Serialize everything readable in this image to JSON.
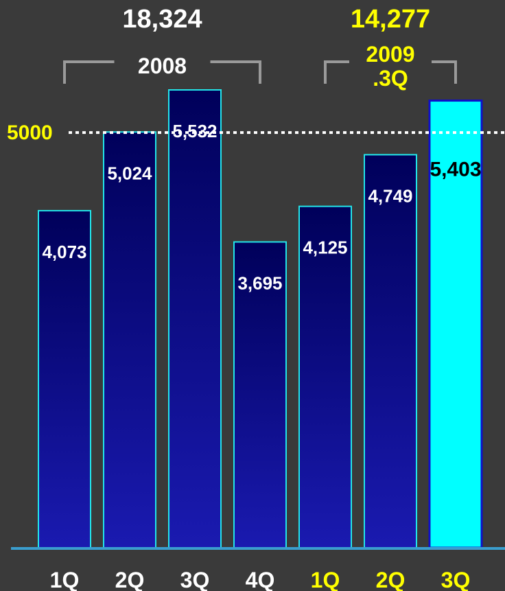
{
  "chart_data": {
    "type": "bar",
    "categories": [
      "1Q",
      "2Q",
      "3Q",
      "4Q",
      "1Q",
      "2Q",
      "3Q"
    ],
    "values": [
      4073,
      5024,
      5532,
      3695,
      4125,
      4749,
      5403
    ],
    "value_labels": [
      "4,073",
      "5,024",
      "5,532",
      "3,695",
      "4,125",
      "4,749",
      "5,403"
    ],
    "groups": [
      {
        "label": "2008",
        "total": "18,324",
        "color": "#ffffff"
      },
      {
        "label": "2009\n.3Q",
        "total": "14,277",
        "color": "#ffff00"
      }
    ],
    "category_group": [
      0,
      0,
      0,
      0,
      1,
      1,
      1
    ],
    "highlight_index": 6,
    "reference_line": {
      "value": 5000,
      "label": "5000"
    },
    "colors": {
      "background": "#3a3a3a",
      "bar_top": "#00005a",
      "bar_bottom": "#1a1ab0",
      "bar_outline": "#22e6ea",
      "highlight_fill": "#00ffff",
      "highlight_outline": "#1010c8",
      "highlight_label": "#000000",
      "baseline": "#3a9ecf",
      "reference_line": "#ffffff",
      "year_2008": "#ffffff",
      "year_2009": "#ffff00",
      "bracket": "#9a9a9a",
      "value_label": "#ffffff"
    }
  }
}
